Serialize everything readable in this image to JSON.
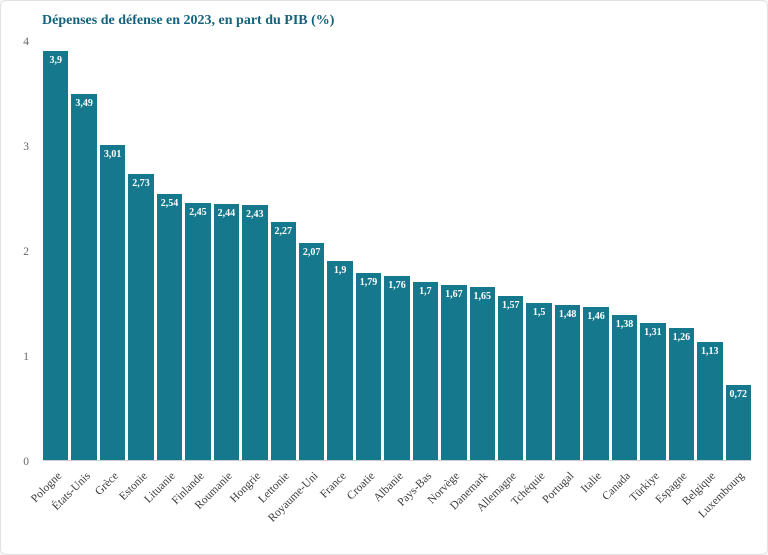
{
  "chart_data": {
    "type": "bar",
    "title": "Dépenses de défense en 2023, en part du PIB (%)",
    "categories": [
      "Pologne",
      "États-Unis",
      "Grèce",
      "Estonie",
      "Lituanie",
      "Finlande",
      "Roumanie",
      "Hongrie",
      "Lettonie",
      "Royaume-Uni",
      "France",
      "Croatie",
      "Albanie",
      "Pays-Bas",
      "Norvège",
      "Danemark",
      "Allemagne",
      "Tchéquie",
      "Portugal",
      "Italie",
      "Canada",
      "Türkiye",
      "Espagne",
      "Belgique",
      "Luxembourg"
    ],
    "values": [
      3.9,
      3.49,
      3.01,
      2.73,
      2.54,
      2.45,
      2.44,
      2.43,
      2.27,
      2.07,
      1.9,
      1.79,
      1.76,
      1.7,
      1.67,
      1.65,
      1.57,
      1.5,
      1.48,
      1.46,
      1.38,
      1.31,
      1.26,
      1.13,
      0.72
    ],
    "value_labels": [
      "3,9",
      "3,49",
      "3,01",
      "2,73",
      "2,54",
      "2,45",
      "2,44",
      "2,43",
      "2,27",
      "2,07",
      "1,9",
      "1,79",
      "1,76",
      "1,7",
      "1,67",
      "1,65",
      "1,57",
      "1,5",
      "1,48",
      "1,46",
      "1,38",
      "1,31",
      "1,26",
      "1,13",
      "0,72"
    ],
    "xlabel": "",
    "ylabel": "",
    "ylim": [
      0,
      4
    ],
    "yticks": [
      0,
      1,
      2,
      3,
      4
    ],
    "grid": false,
    "legend": "none",
    "bar_color": "#15788c",
    "title_color": "#14637b"
  }
}
